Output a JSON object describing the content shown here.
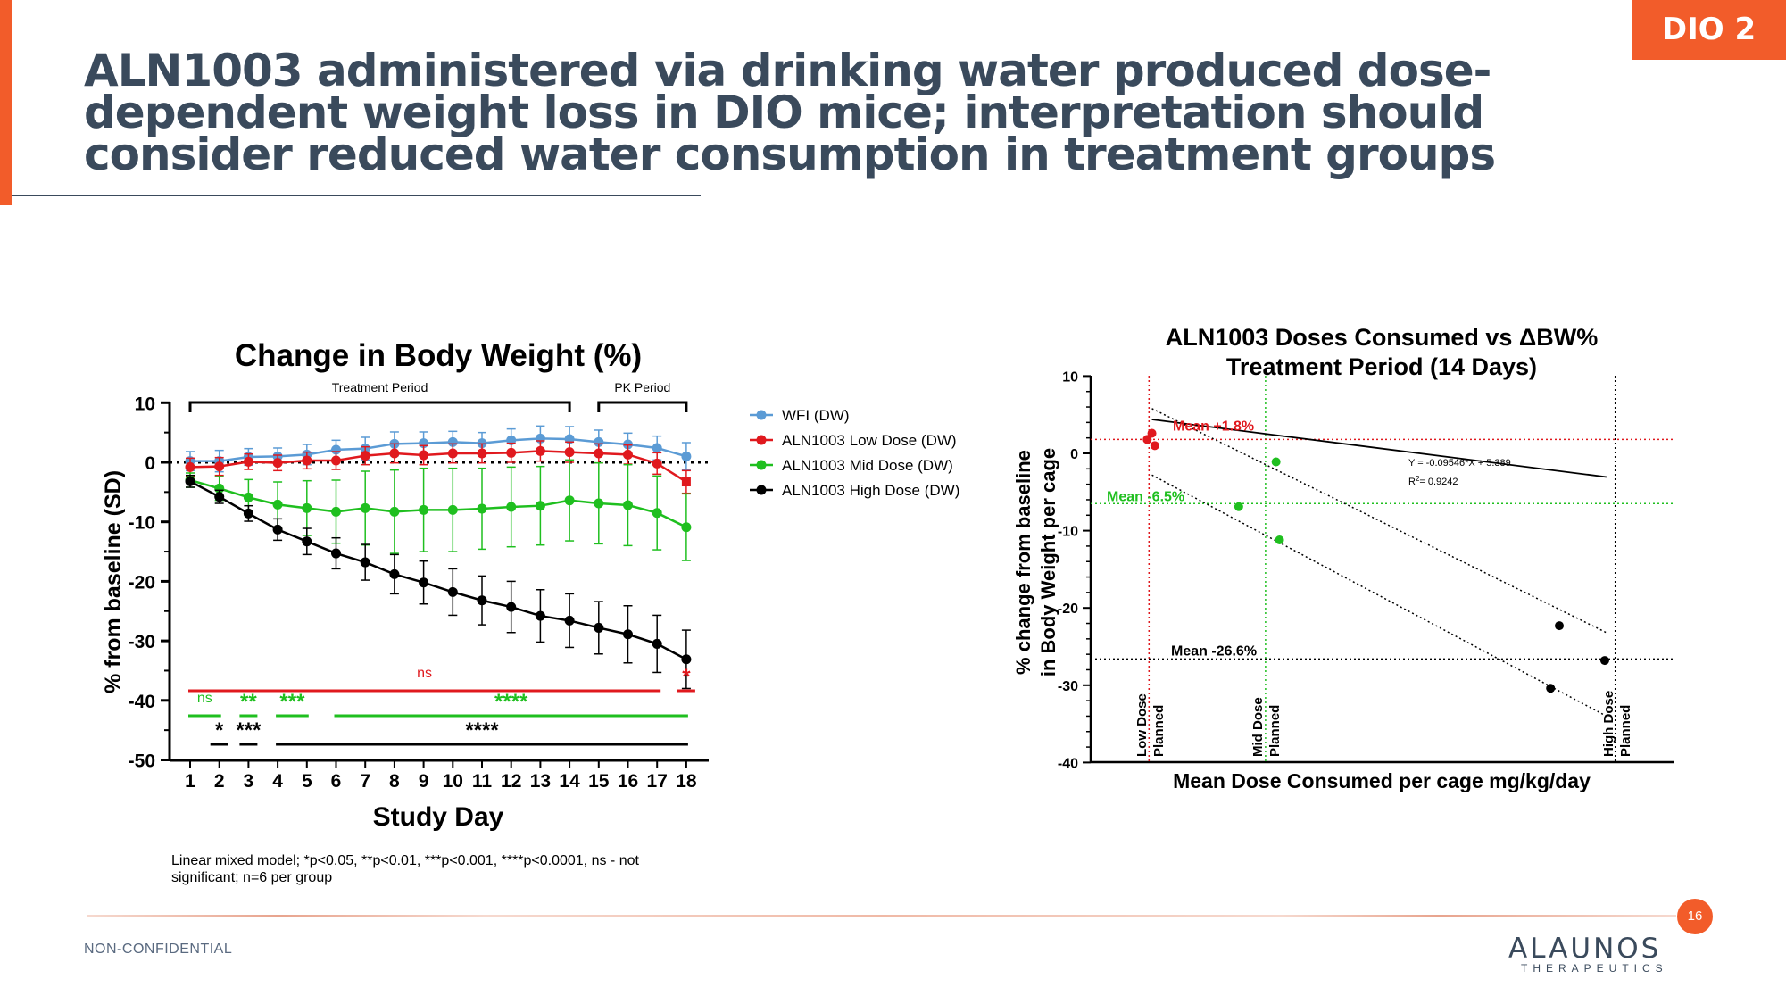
{
  "header": {
    "title": "ALN1003 administered via drinking water produced dose-dependent weight loss in DIO mice; interpretation should consider reduced water consumption in treatment groups",
    "tag": "DIO 2"
  },
  "footer": {
    "footnote": "Linear mixed model; *p<0.05, **p<0.01, ***p<0.001, ****p<0.0001, ns - not significant; n=6 per group",
    "confidential": "NON-CONFIDENTIAL",
    "page_number": "16",
    "logo_main": "ALAUNOS",
    "logo_sub": "THERAPEUTICS"
  },
  "colors": {
    "accent": "#f25c2a",
    "title": "#3a4a5c",
    "wfi": "#5b9bd5",
    "low": "#e0191e",
    "mid": "#1fbf1f",
    "high": "#000000"
  },
  "chart_data": [
    {
      "type": "line",
      "title": "Change in Body Weight (%)",
      "xlabel": "Study Day",
      "ylabel": "% from baseline (SD)",
      "x": [
        1,
        2,
        3,
        4,
        5,
        6,
        7,
        8,
        9,
        10,
        11,
        12,
        13,
        14,
        15,
        16,
        17,
        18
      ],
      "xlim": [
        1,
        18
      ],
      "ylim": [
        -50,
        10
      ],
      "yticks": [
        10,
        0,
        -10,
        -20,
        -30,
        -40,
        -50
      ],
      "legend_position": "right",
      "series": [
        {
          "name": "WFI (DW)",
          "color": "#5b9bd5",
          "values": [
            0.2,
            0.2,
            0.9,
            1.0,
            1.3,
            2.1,
            2.3,
            3.1,
            3.2,
            3.4,
            3.2,
            3.7,
            4.0,
            3.9,
            3.4,
            3.0,
            2.4,
            1.0
          ],
          "sd": [
            1.6,
            1.8,
            1.4,
            1.4,
            1.7,
            1.6,
            1.9,
            2.0,
            1.9,
            1.8,
            1.8,
            1.9,
            2.1,
            2.1,
            2.0,
            1.9,
            2.0,
            2.3
          ]
        },
        {
          "name": "ALN1003 Low Dose (DW)",
          "color": "#e0191e",
          "values": [
            -0.8,
            -0.7,
            0.1,
            -0.1,
            0.3,
            0.3,
            1.1,
            1.5,
            1.2,
            1.5,
            1.5,
            1.6,
            1.9,
            1.7,
            1.5,
            1.3,
            -0.2,
            -3.3
          ],
          "sd": [
            1.5,
            1.5,
            1.3,
            1.3,
            1.4,
            1.5,
            1.5,
            1.6,
            1.6,
            1.6,
            1.6,
            1.6,
            1.7,
            1.7,
            1.6,
            1.6,
            1.8,
            1.9
          ]
        },
        {
          "name": "ALN1003 Mid Dose (DW)",
          "color": "#1fbf1f",
          "values": [
            -3.0,
            -4.4,
            -5.9,
            -7.1,
            -7.7,
            -8.3,
            -7.7,
            -8.3,
            -8.0,
            -8.0,
            -7.8,
            -7.5,
            -7.3,
            -6.4,
            -6.9,
            -7.2,
            -8.5,
            -10.9
          ],
          "sd": [
            1.2,
            2.0,
            3.0,
            3.8,
            4.6,
            5.3,
            6.2,
            7.0,
            7.0,
            7.0,
            6.8,
            6.7,
            6.6,
            6.8,
            6.8,
            6.8,
            6.2,
            5.6
          ]
        },
        {
          "name": "ALN1003 High Dose (DW)",
          "color": "#000000",
          "values": [
            -3.2,
            -5.8,
            -8.6,
            -11.3,
            -13.3,
            -15.3,
            -16.8,
            -18.8,
            -20.2,
            -21.8,
            -23.2,
            -24.3,
            -25.8,
            -26.6,
            -27.8,
            -28.9,
            -30.5,
            -33.1
          ],
          "sd": [
            1.0,
            1.1,
            1.3,
            1.8,
            2.2,
            2.6,
            3.0,
            3.3,
            3.6,
            3.9,
            4.1,
            4.3,
            4.4,
            4.5,
            4.4,
            4.8,
            4.8,
            4.9
          ]
        }
      ],
      "period_labels": [
        {
          "text": "Treatment Period",
          "from": 1,
          "to": 14
        },
        {
          "text": "PK Period",
          "from": 15,
          "to": 18
        }
      ],
      "significance": [
        {
          "group": "low",
          "from": 1,
          "to": 17,
          "text": "ns"
        },
        {
          "group": "low",
          "from": 18,
          "to": 18,
          "text": "*"
        },
        {
          "group": "mid",
          "from": 1,
          "to": 2,
          "text": "ns"
        },
        {
          "group": "mid",
          "from": 3,
          "to": 3,
          "text": "**"
        },
        {
          "group": "mid",
          "from": 4,
          "to": 5,
          "text": "***"
        },
        {
          "group": "mid",
          "from": 6,
          "to": 18,
          "text": "****"
        },
        {
          "group": "high",
          "from": 2,
          "to": 2,
          "text": "*"
        },
        {
          "group": "high",
          "from": 3,
          "to": 3,
          "text": "***"
        },
        {
          "group": "high",
          "from": 4,
          "to": 18,
          "text": "****"
        }
      ]
    },
    {
      "type": "scatter",
      "title": "ALN1003 Doses Consumed vs ΔBW% Treatment Period (14 Days)",
      "xlabel": "Mean Dose Consumed per cage mg/kg/day",
      "ylabel": "% change from baseline in Body Weight per cage",
      "ylim": [
        -40,
        10
      ],
      "yticks": [
        10,
        0,
        -10,
        -20,
        -30,
        -40
      ],
      "xlim": [
        0,
        100
      ],
      "groups": [
        {
          "name": "Low Dose",
          "color": "#e0191e",
          "points": [
            [
              9.7,
              1.8
            ],
            [
              10.5,
              2.6
            ],
            [
              11.0,
              1.0
            ]
          ]
        },
        {
          "name": "Mid Dose",
          "color": "#1fbf1f",
          "points": [
            [
              25.4,
              -6.9
            ],
            [
              31.8,
              -1.1
            ],
            [
              32.4,
              -11.2
            ]
          ]
        },
        {
          "name": "High Dose",
          "color": "#000000",
          "points": [
            [
              78.9,
              -30.4
            ],
            [
              80.4,
              -22.3
            ],
            [
              88.2,
              -26.8
            ]
          ]
        }
      ],
      "regression": {
        "equation": "Y = -0.09546*X + 5.389",
        "r2_label": "R",
        "r2_sup": "2",
        "r2_value": "=  0.9242"
      },
      "means": [
        {
          "label": "Mean +1.8%",
          "value": 1.8,
          "color": "#e0191e"
        },
        {
          "label": "Mean -6.5%",
          "value": -6.5,
          "color": "#1fbf1f"
        },
        {
          "label": "Mean -26.6%",
          "value": -26.6,
          "color": "#000000"
        }
      ],
      "planned": [
        {
          "line1": "Low Dose",
          "line2": "Planned",
          "x": 10,
          "color": "#e0191e"
        },
        {
          "line1": "Mid Dose",
          "line2": "Planned",
          "x": 30,
          "color": "#1fbf1f"
        },
        {
          "line1": "High Dose",
          "line2": "Planned",
          "x": 90,
          "color": "#000000"
        }
      ]
    }
  ]
}
